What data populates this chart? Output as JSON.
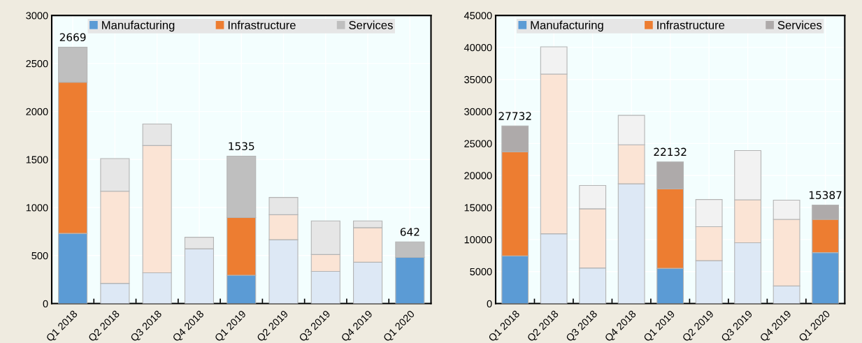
{
  "chart_data": [
    {
      "type": "bar",
      "stacked": true,
      "categories": [
        "Q1 2018",
        "Q2 2018",
        "Q3 2018",
        "Q4 2018",
        "Q1 2019",
        "Q2 2019",
        "Q3 2019",
        "Q4 2019",
        "Q1 2020"
      ],
      "series": [
        {
          "name": "Manufacturing",
          "color": "#5b9bd5",
          "colors": [
            "#5b9bd5",
            "#dde8f5",
            "#dde8f5",
            "#dde8f5",
            "#5b9bd5",
            "#dde8f5",
            "#dde8f5",
            "#dde8f5",
            "#5b9bd5"
          ],
          "values": [
            730,
            210,
            320,
            570,
            295,
            665,
            335,
            430,
            480
          ]
        },
        {
          "name": "Infrastructure",
          "color": "#ed7d31",
          "colors": [
            "#ed7d31",
            "#fbe4d5",
            "#fbe4d5",
            "#fbe4d5",
            "#ed7d31",
            "#fbe4d5",
            "#fbe4d5",
            "#fbe4d5",
            "#ed7d31"
          ],
          "values": [
            1575,
            960,
            1325,
            0,
            600,
            260,
            175,
            360,
            0
          ]
        },
        {
          "name": "Services",
          "color": "#bfbfbf",
          "colors": [
            "#bfbfbf",
            "#e6e6e6",
            "#e6e6e6",
            "#e6e6e6",
            "#bfbfbf",
            "#e6e6e6",
            "#e6e6e6",
            "#e6e6e6",
            "#bfbfbf"
          ],
          "values": [
            364,
            340,
            225,
            120,
            640,
            180,
            350,
            70,
            162
          ]
        }
      ],
      "totals": [
        "2669",
        null,
        null,
        null,
        "1535",
        null,
        null,
        null,
        "642"
      ],
      "ylim": [
        0,
        3000
      ],
      "yticks": [
        0,
        500,
        1000,
        1500,
        2000,
        2500,
        3000
      ],
      "grid": true,
      "legend": "top"
    },
    {
      "type": "bar",
      "stacked": true,
      "categories": [
        "Q1 2018",
        "Q2 2018",
        "Q3 2018",
        "Q4 2018",
        "Q1 2019",
        "Q2 2019",
        "Q3 2019",
        "Q4 2019",
        "Q1 2020"
      ],
      "series": [
        {
          "name": "Manufacturing",
          "color": "#5b9bd5",
          "colors": [
            "#5b9bd5",
            "#dde8f5",
            "#dde8f5",
            "#dde8f5",
            "#5b9bd5",
            "#dde8f5",
            "#dde8f5",
            "#dde8f5",
            "#5b9bd5"
          ],
          "values": [
            7450,
            10900,
            5550,
            18700,
            5500,
            6700,
            9500,
            2750,
            7950
          ]
        },
        {
          "name": "Infrastructure",
          "color": "#ed7d31",
          "colors": [
            "#ed7d31",
            "#fbe4d5",
            "#fbe4d5",
            "#fbe4d5",
            "#ed7d31",
            "#fbe4d5",
            "#fbe4d5",
            "#fbe4d5",
            "#ed7d31"
          ],
          "values": [
            16260,
            24950,
            9250,
            6100,
            12400,
            5300,
            6700,
            10400,
            5200
          ]
        },
        {
          "name": "Services",
          "color": "#aeaaaa",
          "colors": [
            "#aeaaaa",
            "#f2f2f2",
            "#f2f2f2",
            "#f2f2f2",
            "#aeaaaa",
            "#f2f2f2",
            "#f2f2f2",
            "#f2f2f2",
            "#aeaaaa"
          ],
          "values": [
            4022,
            4250,
            3650,
            4600,
            4232,
            4250,
            7700,
            3000,
            2237
          ]
        }
      ],
      "totals": [
        "27732",
        null,
        null,
        null,
        "22132",
        null,
        null,
        null,
        "15387"
      ],
      "ylim": [
        0,
        45000
      ],
      "yticks": [
        0,
        5000,
        10000,
        15000,
        20000,
        25000,
        30000,
        35000,
        40000,
        45000
      ],
      "grid": true,
      "legend": "top"
    }
  ]
}
